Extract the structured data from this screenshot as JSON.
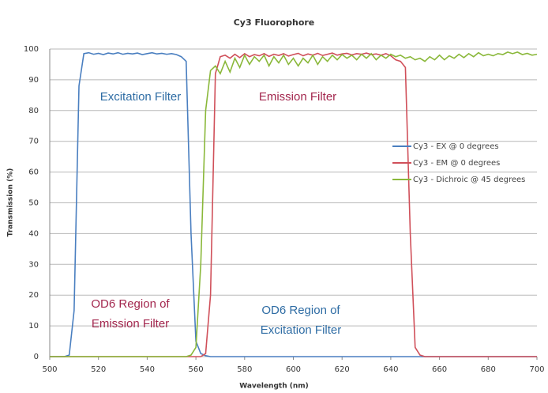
{
  "chart_data": {
    "type": "line",
    "title": "Cy3 Fluorophore",
    "xlabel": "Wavelength (nm)",
    "ylabel": "Transmission (%)",
    "x": [
      500,
      502,
      504,
      506,
      508,
      510,
      512,
      514,
      516,
      518,
      520,
      522,
      524,
      526,
      528,
      530,
      532,
      534,
      536,
      538,
      540,
      542,
      544,
      546,
      548,
      550,
      552,
      554,
      556,
      558,
      560,
      562,
      564,
      566,
      568,
      570,
      572,
      574,
      576,
      578,
      580,
      582,
      584,
      586,
      588,
      590,
      592,
      594,
      596,
      598,
      600,
      602,
      604,
      606,
      608,
      610,
      612,
      614,
      616,
      618,
      620,
      622,
      624,
      626,
      628,
      630,
      632,
      634,
      636,
      638,
      640,
      642,
      644,
      646,
      648,
      650,
      652,
      654,
      656,
      658,
      660,
      662,
      664,
      666,
      668,
      670,
      672,
      674,
      676,
      678,
      680,
      682,
      684,
      686,
      688,
      690,
      692,
      694,
      696,
      698,
      700
    ],
    "series": [
      {
        "name": "Cy3 - EX @ 0 degrees",
        "color": "#4a7fc0",
        "values": [
          0,
          0,
          0,
          0,
          0.5,
          15,
          88,
          98.5,
          98.8,
          98.3,
          98.6,
          98.2,
          98.7,
          98.4,
          98.8,
          98.3,
          98.6,
          98.4,
          98.7,
          98.2,
          98.5,
          98.8,
          98.4,
          98.6,
          98.3,
          98.5,
          98.2,
          97.5,
          96,
          40,
          5,
          1,
          0.3,
          0,
          0,
          0,
          0,
          0,
          0,
          0,
          0,
          0,
          0,
          0,
          0,
          0,
          0,
          0,
          0,
          0,
          0,
          0,
          0,
          0,
          0,
          0,
          0,
          0,
          0,
          0,
          0,
          0,
          0,
          0,
          0,
          0,
          0,
          0,
          0,
          0,
          0,
          0,
          0,
          0,
          0,
          0,
          0,
          0,
          0,
          0,
          0,
          0,
          0,
          0,
          0,
          0,
          0,
          0,
          0,
          0,
          0,
          0,
          0,
          0,
          0,
          0,
          0,
          0,
          0,
          0,
          0
        ]
      },
      {
        "name": "Cy3 - EM @ 0 degrees",
        "color": "#d0505a",
        "values": [
          0,
          0,
          0,
          0,
          0,
          0,
          0,
          0,
          0,
          0,
          0,
          0,
          0,
          0,
          0,
          0,
          0,
          0,
          0,
          0,
          0,
          0,
          0,
          0,
          0,
          0,
          0,
          0,
          0,
          0,
          0,
          0,
          1,
          20,
          92,
          97.5,
          98,
          97,
          98.3,
          97.2,
          98.5,
          97.5,
          98.2,
          97.8,
          98.5,
          97.6,
          98.3,
          97.9,
          98.5,
          97.7,
          98.2,
          98.6,
          97.8,
          98.4,
          98,
          98.6,
          97.9,
          98.3,
          98.7,
          98,
          98.4,
          98.6,
          98.1,
          98.5,
          98.3,
          98.7,
          98.2,
          98.4,
          98,
          98.5,
          97.8,
          96.5,
          96,
          94,
          40,
          3,
          0.5,
          0,
          0,
          0,
          0,
          0,
          0,
          0,
          0,
          0,
          0,
          0,
          0,
          0,
          0,
          0,
          0,
          0,
          0,
          0,
          0,
          0,
          0,
          0,
          0
        ]
      },
      {
        "name": "Cy3 - Dichroic @ 45 degrees",
        "color": "#8ab83a",
        "values": [
          0,
          0,
          0,
          0,
          0,
          0,
          0,
          0,
          0,
          0,
          0,
          0,
          0,
          0,
          0,
          0,
          0,
          0,
          0,
          0,
          0,
          0,
          0,
          0,
          0,
          0,
          0,
          0,
          0,
          0.5,
          3,
          30,
          80,
          93,
          94.5,
          92,
          96,
          92.5,
          97,
          94,
          98,
          95,
          97.5,
          96,
          98,
          94.5,
          97.5,
          95.5,
          98,
          95,
          97,
          94.5,
          97,
          95.5,
          98,
          95,
          97.5,
          96,
          98,
          96.5,
          98.2,
          97,
          98,
          96.5,
          98.3,
          97,
          98.5,
          96.5,
          98,
          97,
          98.3,
          97.5,
          98,
          97,
          97.5,
          96.5,
          97,
          96,
          97.5,
          96.5,
          98,
          96.5,
          97.8,
          97,
          98.3,
          97.2,
          98.5,
          97.5,
          98.8,
          97.8,
          98.3,
          97.8,
          98.5,
          98.2,
          99,
          98.5,
          99,
          98.2,
          98.6,
          98,
          98.3
        ]
      }
    ],
    "xlim": [
      500,
      700
    ],
    "xticks": [
      500,
      520,
      540,
      560,
      580,
      600,
      620,
      640,
      660,
      680,
      700
    ],
    "ylim": [
      0,
      100
    ],
    "yticks": [
      0,
      10,
      20,
      30,
      40,
      50,
      60,
      70,
      80,
      90,
      100
    ],
    "grid": true,
    "legend": "right",
    "annotations": [
      {
        "lines": [
          "Excitation Filter"
        ],
        "color": "#2e6ca4"
      },
      {
        "lines": [
          "Emission Filter"
        ],
        "color": "#a3274e"
      },
      {
        "lines": [
          "OD6 Region of",
          "Emission Filter"
        ],
        "color": "#a3274e"
      },
      {
        "lines": [
          "OD6 Region of",
          "Excitation Filter"
        ],
        "color": "#2e6ca4"
      }
    ]
  }
}
